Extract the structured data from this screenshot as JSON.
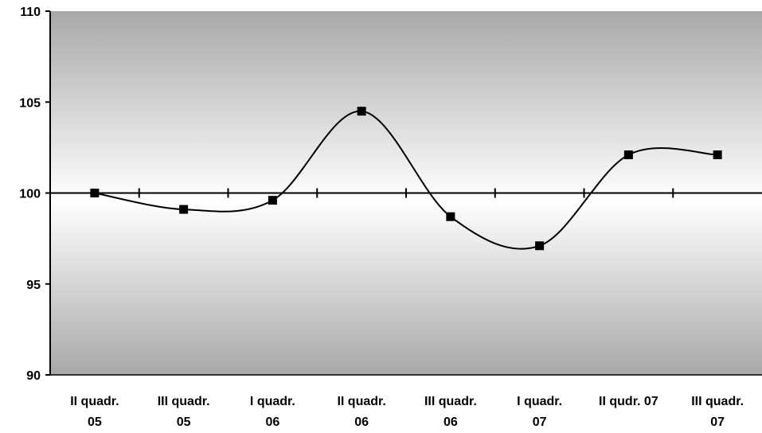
{
  "chart_data": {
    "type": "line",
    "title": "",
    "xlabel": "",
    "ylabel": "",
    "categories": [
      [
        "II quadr.",
        "05"
      ],
      [
        "III quadr.",
        "05"
      ],
      [
        "I quadr.",
        "06"
      ],
      [
        "II quadr.",
        "06"
      ],
      [
        "III quadr.",
        "06"
      ],
      [
        "I quadr.",
        "07"
      ],
      [
        "II qudr. 07",
        ""
      ],
      [
        "III quadr.",
        "07"
      ]
    ],
    "series": [
      {
        "values": [
          100.0,
          99.1,
          99.6,
          104.5,
          98.7,
          97.1,
          102.1,
          102.1
        ]
      }
    ],
    "ylim": [
      90,
      110
    ],
    "yticks": [
      90,
      95,
      100,
      105,
      110
    ],
    "ytick_labels": [
      "90",
      "95",
      "100",
      "105",
      "110"
    ],
    "x_axis_crosses_at": 100,
    "smoothed": true,
    "marker": "square",
    "grid": false,
    "legend": "none",
    "colors": {
      "line": "#000000",
      "marker": "#000000",
      "plot_gradient_edge": "#a8a8a8",
      "plot_gradient_center": "#ffffff"
    }
  }
}
